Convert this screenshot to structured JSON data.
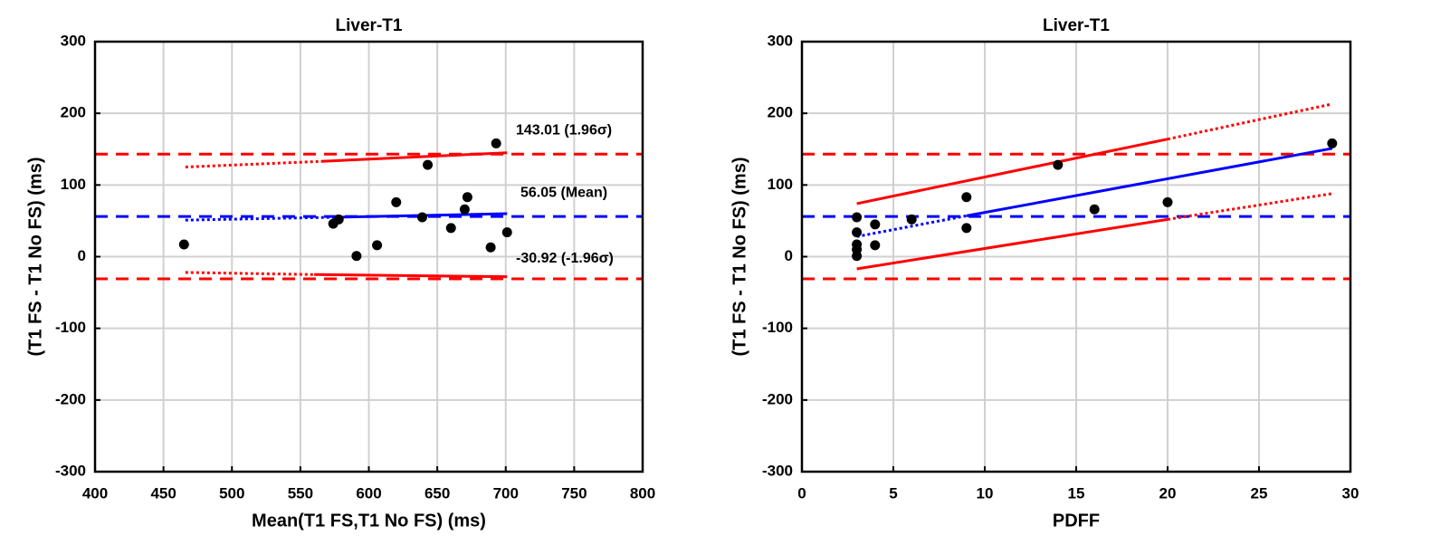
{
  "chart_data": [
    {
      "type": "scatter",
      "title": "Liver-T1",
      "x_label": "Mean(T1 FS,T1 No FS) (ms)",
      "y_label": "(T1 FS - T1 No FS) (ms)",
      "x": [
        465,
        574,
        578,
        591,
        606,
        620,
        639,
        643,
        660,
        670,
        672,
        689,
        693,
        701
      ],
      "values": [
        17,
        46,
        52,
        1,
        16,
        76,
        55,
        128,
        40,
        66,
        83,
        13,
        158,
        34
      ],
      "color": "#000000",
      "xlim": [
        400,
        800
      ],
      "xticks": [
        400,
        450,
        500,
        550,
        600,
        650,
        700,
        750,
        800
      ],
      "ylim": [
        -300,
        300
      ],
      "yticks": [
        -300,
        -200,
        -100,
        0,
        100,
        200,
        300
      ],
      "grid": true,
      "hlines": [
        {
          "value": 143.01,
          "label": "143.01 (1.96σ)",
          "color": "#ff0000"
        },
        {
          "value": 56.05,
          "label": "56.05 (Mean)",
          "color": "#0000ff"
        },
        {
          "value": -30.92,
          "label": "-30.92 (-1.96σ)",
          "color": "#ff0000"
        }
      ],
      "fit_lines": [
        {
          "color": "#0000ff",
          "style": "dotted",
          "x": [
            466,
            575
          ],
          "values": [
            51,
            55
          ]
        },
        {
          "color": "#0000ff",
          "style": "solid",
          "x": [
            575,
            701
          ],
          "values": [
            55,
            60
          ]
        },
        {
          "color": "#ff0000",
          "style": "dotted",
          "x": [
            466,
            565
          ],
          "values": [
            125,
            133
          ]
        },
        {
          "color": "#ff0000",
          "style": "solid",
          "x": [
            565,
            701
          ],
          "values": [
            133,
            145
          ]
        },
        {
          "color": "#ff0000",
          "style": "dotted",
          "x": [
            466,
            560
          ],
          "values": [
            -22,
            -25
          ]
        },
        {
          "color": "#ff0000",
          "style": "solid",
          "x": [
            560,
            701
          ],
          "values": [
            -25,
            -28
          ]
        }
      ]
    },
    {
      "type": "scatter",
      "title": "Liver-T1",
      "x_label": "PDFF",
      "y_label": "(T1 FS - T1 No FS) (ms)",
      "x": [
        3,
        3,
        3,
        3,
        3,
        4,
        4,
        6,
        9,
        9,
        14,
        16,
        20,
        29
      ],
      "values": [
        55,
        34,
        17,
        10,
        1,
        45,
        16,
        52,
        83,
        40,
        128,
        66,
        76,
        158
      ],
      "color": "#000000",
      "xlim": [
        0,
        30
      ],
      "xticks": [
        0,
        5,
        10,
        15,
        20,
        25,
        30
      ],
      "ylim": [
        -300,
        300
      ],
      "yticks": [
        -300,
        -200,
        -100,
        0,
        100,
        200,
        300
      ],
      "grid": true,
      "hlines": [
        {
          "value": 143.01,
          "color": "#ff0000"
        },
        {
          "value": 56.05,
          "color": "#0000ff"
        },
        {
          "value": -30.92,
          "color": "#ff0000"
        }
      ],
      "fit_lines": [
        {
          "color": "#0000ff",
          "style": "dotted",
          "x": [
            3,
            9
          ],
          "values": [
            28,
            57
          ]
        },
        {
          "color": "#0000ff",
          "style": "solid",
          "x": [
            9,
            29
          ],
          "values": [
            57,
            151
          ]
        },
        {
          "color": "#ff0000",
          "style": "solid",
          "x": [
            3,
            20
          ],
          "values": [
            74,
            164
          ]
        },
        {
          "color": "#ff0000",
          "style": "dotted",
          "x": [
            20,
            29
          ],
          "values": [
            164,
            213
          ]
        },
        {
          "color": "#ff0000",
          "style": "solid",
          "x": [
            3,
            20
          ],
          "values": [
            -17,
            52
          ]
        },
        {
          "color": "#ff0000",
          "style": "dotted",
          "x": [
            20,
            29
          ],
          "values": [
            52,
            88
          ]
        }
      ]
    }
  ]
}
